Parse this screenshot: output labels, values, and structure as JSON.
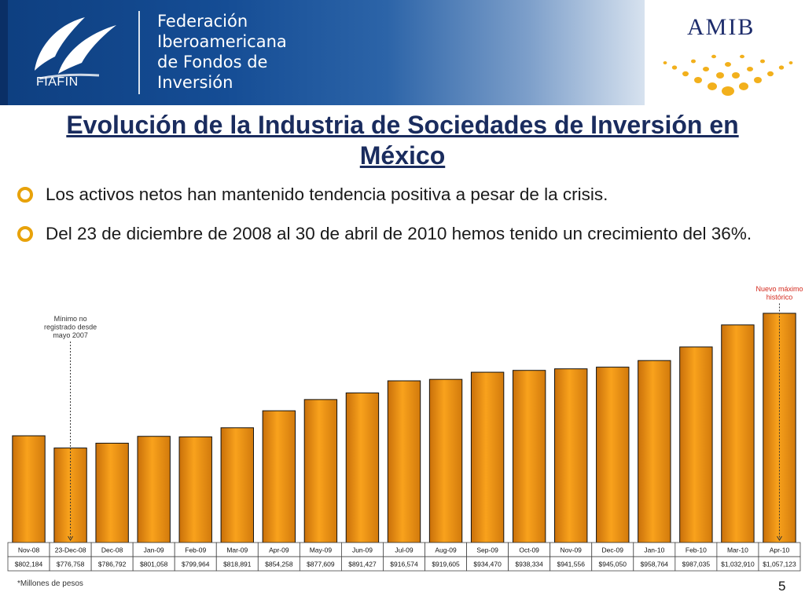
{
  "header": {
    "fiafin_logo_text": "FIAFIN",
    "org_name_lines": [
      "Federación",
      "Iberoamericana",
      "de Fondos de",
      "Inversión"
    ],
    "amib_logo_text": "AMIB"
  },
  "slide": {
    "title": "Evolución de la Industria de Sociedades de Inversión en México",
    "bullets": [
      "Los activos netos han mantenido tendencia positiva a pesar de la crisis.",
      "Del 23 de diciembre de 2008 al 30 de abril de 2010 hemos tenido un crecimiento del 36%."
    ],
    "footnote": "*Millones de pesos",
    "page_number": "5"
  },
  "chart_data": {
    "type": "bar",
    "categories": [
      "Nov-08",
      "23-Dec-08",
      "Dec-08",
      "Jan-09",
      "Feb-09",
      "Mar-09",
      "Apr-09",
      "May-09",
      "Jun-09",
      "Jul-09",
      "Aug-09",
      "Sep-09",
      "Oct-09",
      "Nov-09",
      "Dec-09",
      "Jan-10",
      "Feb-10",
      "Mar-10",
      "Apr-10"
    ],
    "values": [
      802184,
      776758,
      786792,
      801058,
      799964,
      818891,
      854258,
      877609,
      891427,
      916574,
      919605,
      934470,
      938334,
      941556,
      945050,
      958764,
      987035,
      1032910,
      1057123
    ],
    "value_labels": [
      "$802,184",
      "$776,758",
      "$786,792",
      "$801,058",
      "$799,964",
      "$818,891",
      "$854,258",
      "$877,609",
      "$891,427",
      "$916,574",
      "$919,605",
      "$934,470",
      "$938,334",
      "$941,556",
      "$945,050",
      "$958,764",
      "$987,035",
      "$1,032,910",
      "$1,057,123"
    ],
    "annotations": [
      {
        "category": "23-Dec-08",
        "text_lines": [
          "Mínimo no",
          "registrado desde",
          "mayo 2007"
        ],
        "color": "#333333"
      },
      {
        "category": "Apr-10",
        "text_lines": [
          "Nuevo máximo",
          "histórico"
        ],
        "color": "#d42a1e"
      }
    ],
    "bar_color": "#f3920f",
    "bar_border_color": "#111111",
    "grid": false
  }
}
